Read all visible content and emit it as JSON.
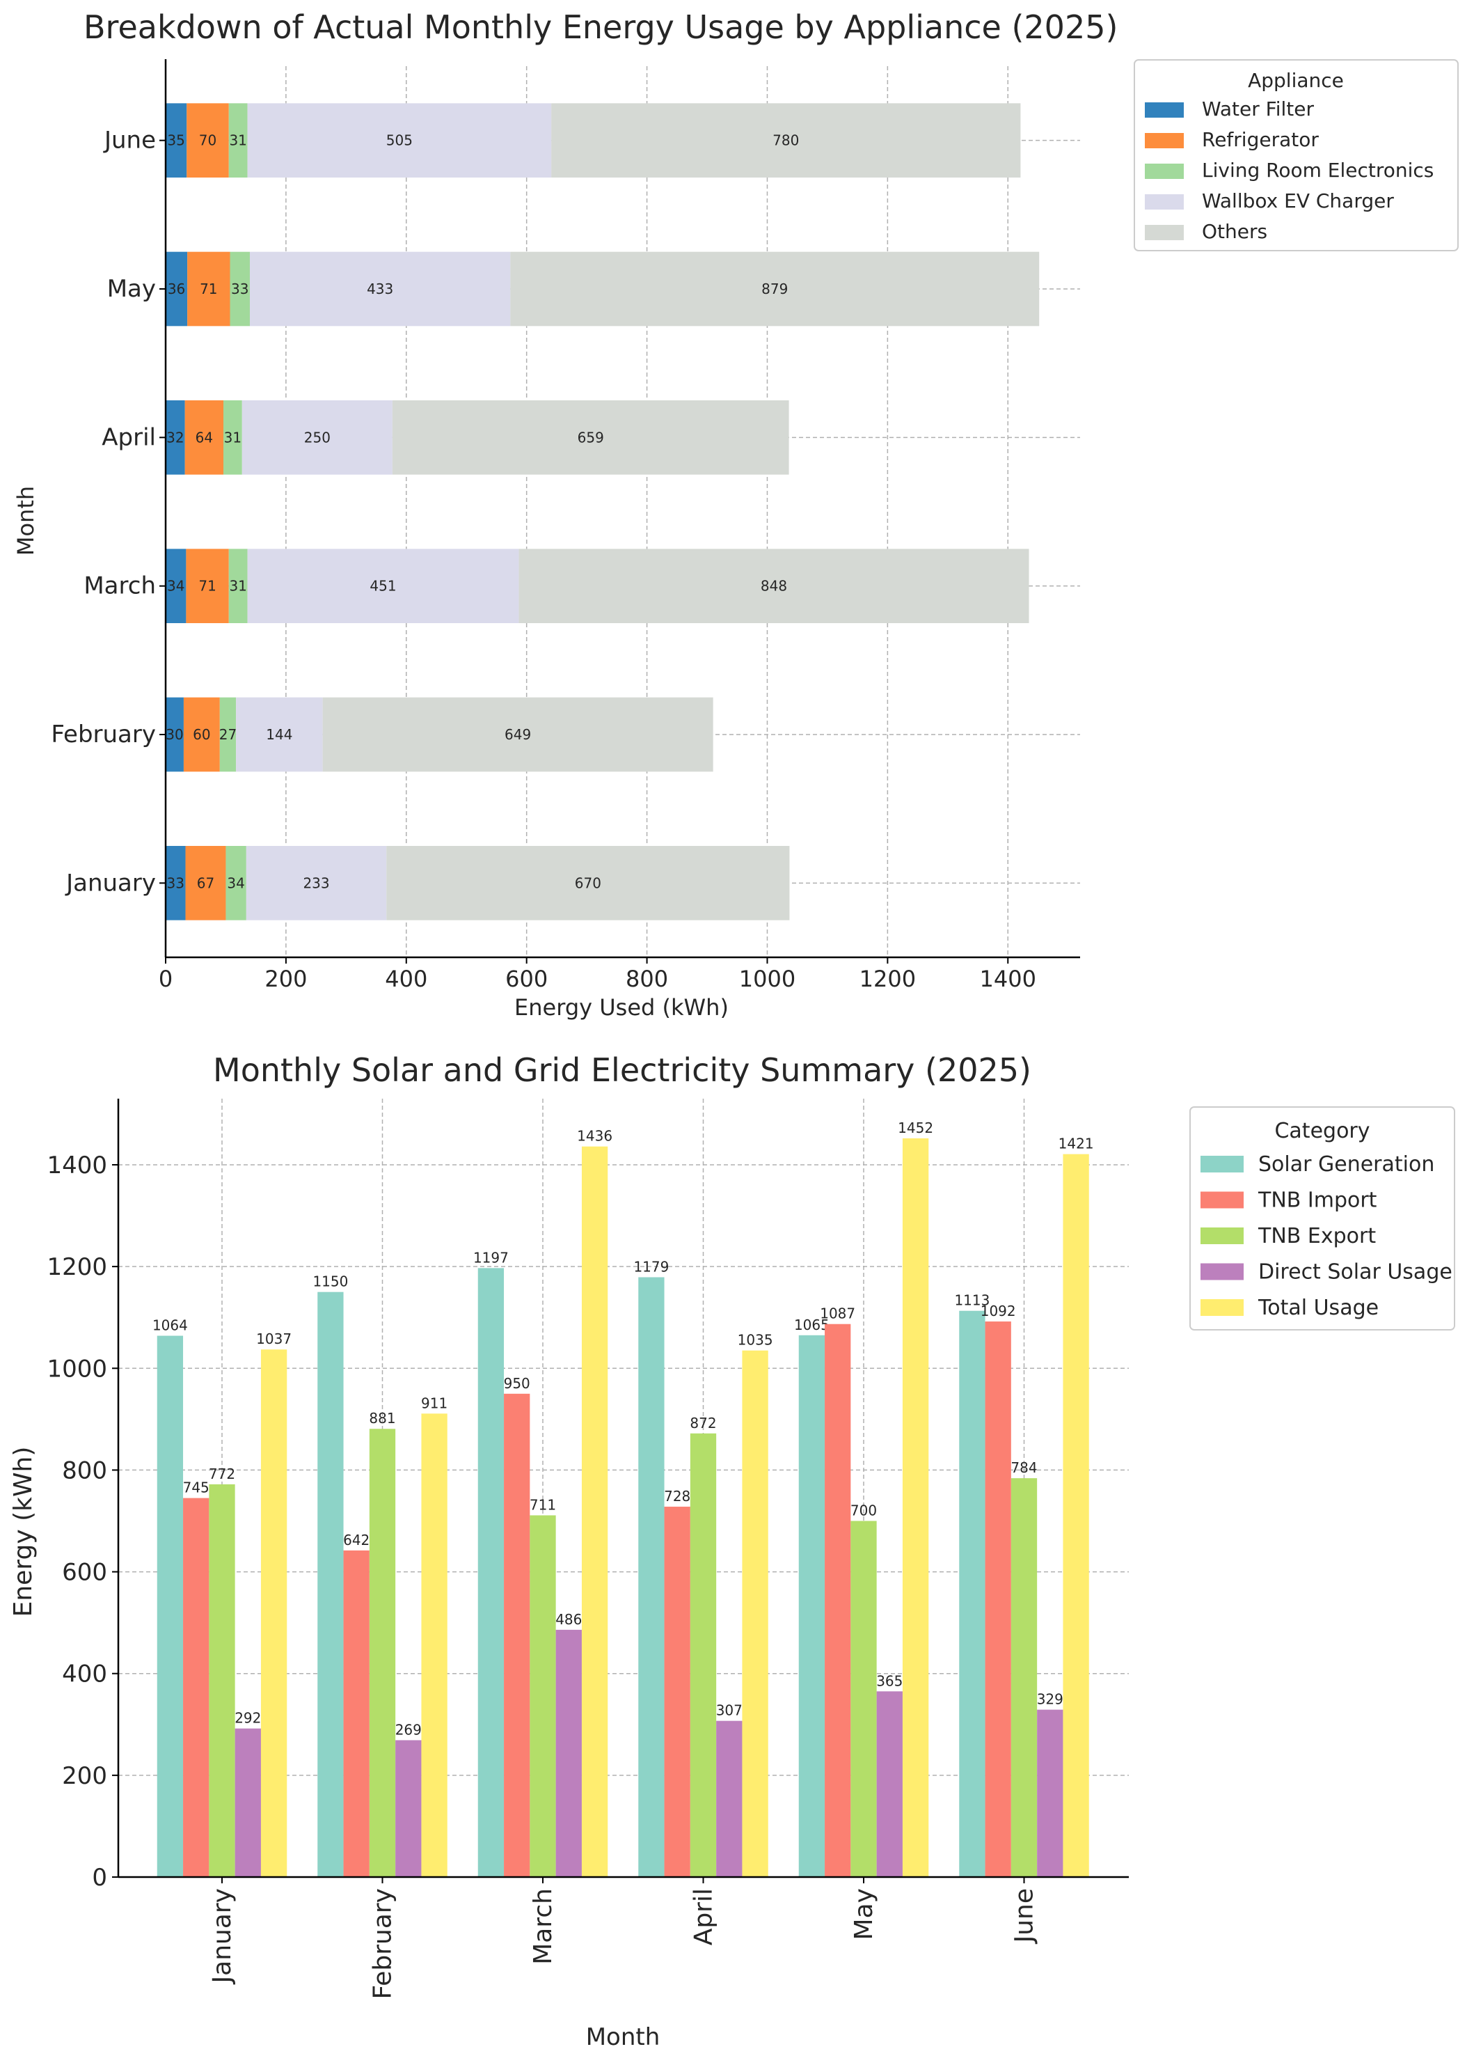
{
  "chart_data": [
    {
      "type": "bar",
      "orientation": "horizontal",
      "stacked": true,
      "title": "Breakdown of Actual Monthly Energy Usage by Appliance (2025)",
      "xlabel": "Energy Used (kWh)",
      "ylabel": "Month",
      "categories": [
        "January",
        "February",
        "March",
        "April",
        "May",
        "June"
      ],
      "xlim": [
        0,
        1520
      ],
      "xticks": [
        0,
        200,
        400,
        600,
        800,
        1000,
        1200,
        1400
      ],
      "grid": true,
      "legend_title": "Appliance",
      "legend_position": "outside-top-right",
      "series": [
        {
          "name": "Water Filter",
          "color": "#3182bd",
          "values": [
            33,
            30,
            34,
            32,
            36,
            35
          ]
        },
        {
          "name": "Refrigerator",
          "color": "#fd8d3c",
          "values": [
            67,
            60,
            71,
            64,
            71,
            70
          ]
        },
        {
          "name": "Living Room Electronics",
          "color": "#a1d99b",
          "values": [
            34,
            27,
            31,
            31,
            33,
            31
          ]
        },
        {
          "name": "Wallbox EV Charger",
          "color": "#dadaeb",
          "values": [
            233,
            144,
            451,
            250,
            433,
            505
          ]
        },
        {
          "name": "Others",
          "color": "#d5d9d4",
          "values": [
            670,
            649,
            848,
            659,
            879,
            780
          ]
        }
      ]
    },
    {
      "type": "bar",
      "orientation": "vertical",
      "stacked": false,
      "title": "Monthly Solar and Grid Electricity Summary (2025)",
      "xlabel": "Month",
      "ylabel": "Energy (kWh)",
      "categories": [
        "January",
        "February",
        "March",
        "April",
        "May",
        "June"
      ],
      "ylim": [
        0,
        1530
      ],
      "yticks": [
        0,
        200,
        400,
        600,
        800,
        1000,
        1200,
        1400
      ],
      "grid": true,
      "legend_title": "Category",
      "legend_position": "outside-top-right",
      "series": [
        {
          "name": "Solar Generation",
          "color": "#8dd3c7",
          "values": [
            1064,
            1150,
            1197,
            1179,
            1065,
            1113
          ]
        },
        {
          "name": "TNB Import",
          "color": "#fb8072",
          "values": [
            745,
            642,
            950,
            728,
            1087,
            1092
          ]
        },
        {
          "name": "TNB Export",
          "color": "#b3de69",
          "values": [
            772,
            881,
            711,
            872,
            700,
            784
          ]
        },
        {
          "name": "Direct Solar Usage",
          "color": "#bc80bd",
          "values": [
            292,
            269,
            486,
            307,
            365,
            329
          ]
        },
        {
          "name": "Total Usage",
          "color": "#ffed6f",
          "values": [
            1037,
            911,
            1436,
            1035,
            1452,
            1421
          ]
        }
      ]
    }
  ]
}
